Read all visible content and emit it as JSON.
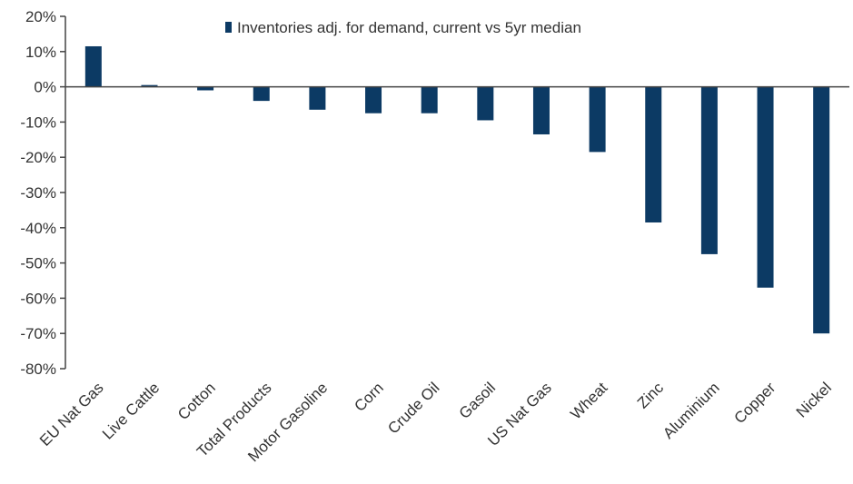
{
  "chart_data": {
    "type": "bar",
    "legend": "Inventories adj. for demand, current vs 5yr median",
    "legend_position": "top-right",
    "categories": [
      "EU Nat Gas",
      "Live Cattle",
      "Cotton",
      "Total Products",
      "Motor Gasoline",
      "Corn",
      "Crude Oil",
      "Gasoil",
      "US Nat Gas",
      "Wheat",
      "Zinc",
      "Aluminium",
      "Copper",
      "Nickel"
    ],
    "series": [
      {
        "name": "Inventories adj. for demand, current vs 5yr median",
        "values": [
          11.5,
          0.5,
          -1.0,
          -4.0,
          -6.5,
          -7.5,
          -7.5,
          -9.5,
          -13.5,
          -18.5,
          -38.5,
          -47.5,
          -57.0,
          -70.0
        ]
      }
    ],
    "ylim": [
      -80,
      20
    ],
    "yticks": [
      20,
      10,
      0,
      -10,
      -20,
      -30,
      -40,
      -50,
      -60,
      -70,
      -80
    ],
    "ytick_labels": [
      "20%",
      "10%",
      "0%",
      "-10%",
      "-20%",
      "-30%",
      "-40%",
      "-50%",
      "-60%",
      "-70%",
      "-80%"
    ],
    "grid": false,
    "colors": {
      "bar": "#0c3a64",
      "axis": "#444444",
      "text": "#333333"
    }
  }
}
